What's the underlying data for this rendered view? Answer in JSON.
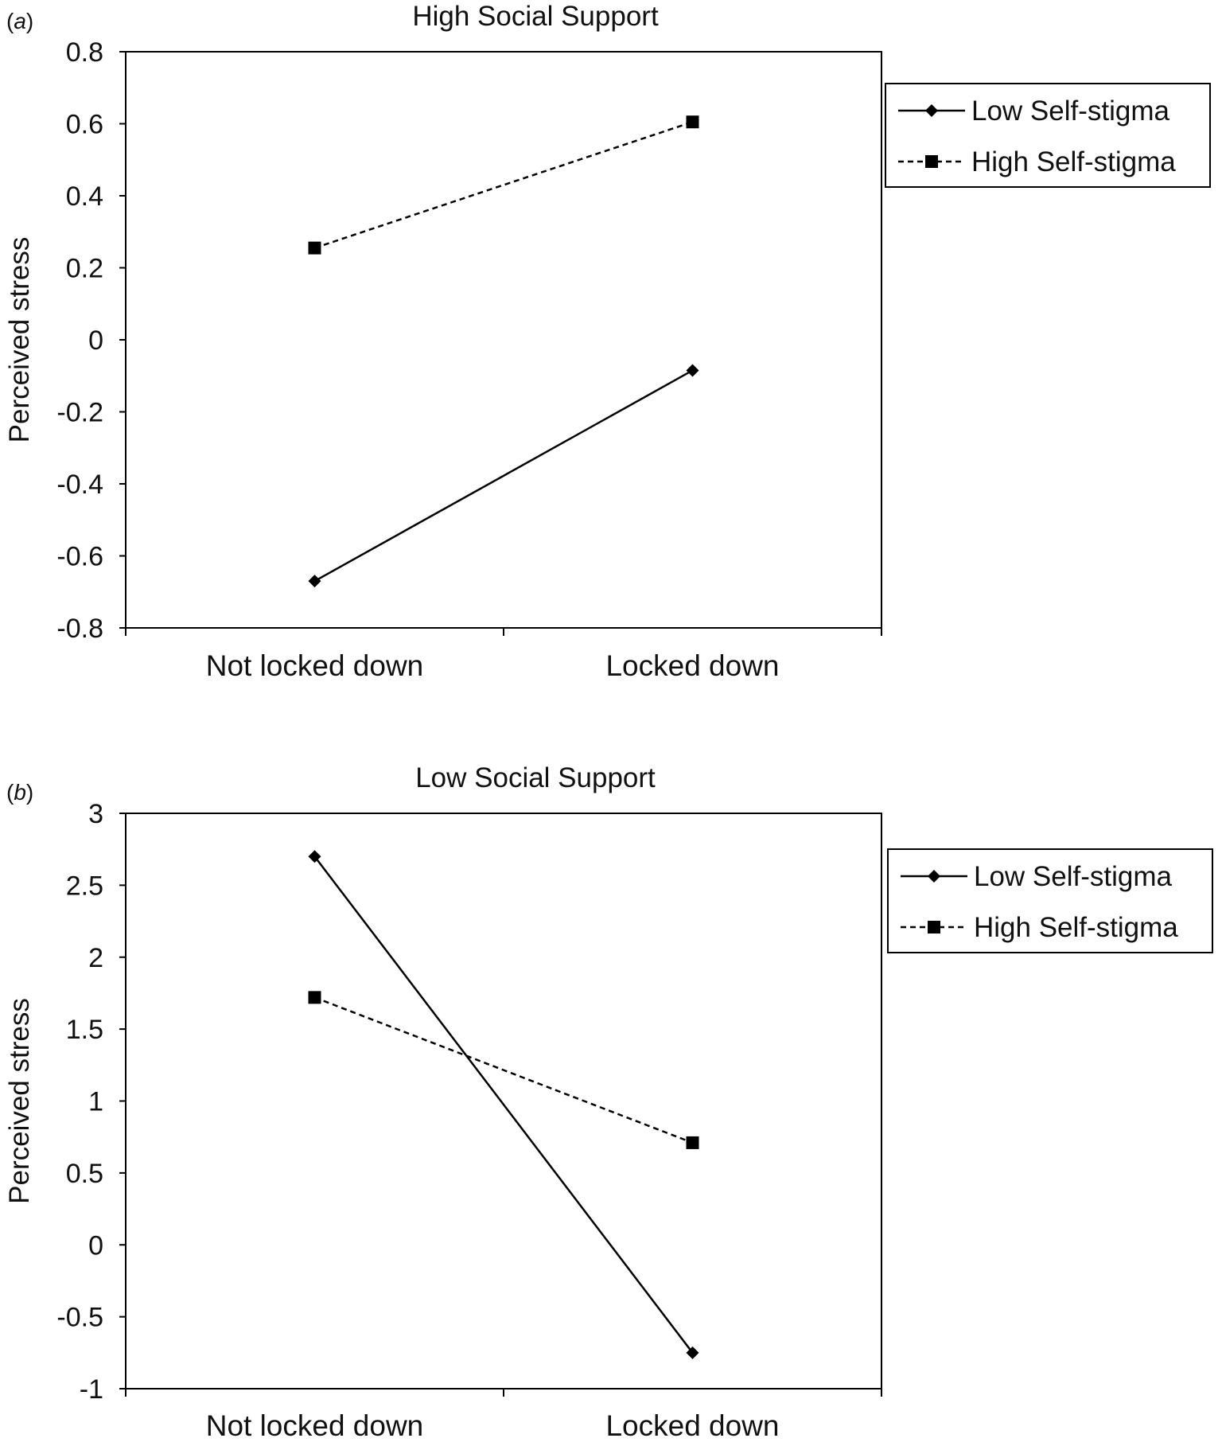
{
  "chart_data": [
    {
      "panel_label": "(a)",
      "type": "line",
      "title": "High Social Support",
      "xlabel": "",
      "ylabel": "Perceived stress",
      "categories": [
        "Not locked down",
        "Locked down"
      ],
      "ylim": [
        -0.8,
        0.8
      ],
      "yticks": [
        "-0.8",
        "-0.6",
        "-0.4",
        "-0.2",
        "0",
        "0.2",
        "0.4",
        "0.6",
        "0.8"
      ],
      "legend_position": "right",
      "series": [
        {
          "name": "Low Self-stigma",
          "values": [
            -0.67,
            -0.085
          ],
          "line": "solid",
          "marker": "diamond",
          "color": "#000000"
        },
        {
          "name": "High Self-stigma",
          "values": [
            0.255,
            0.605
          ],
          "line": "dashed",
          "marker": "square",
          "color": "#000000"
        }
      ]
    },
    {
      "panel_label": "(b)",
      "type": "line",
      "title": "Low Social Support",
      "xlabel": "",
      "ylabel": "Perceived stress",
      "categories": [
        "Not locked down",
        "Locked down"
      ],
      "ylim": [
        -1,
        3
      ],
      "yticks": [
        "-1",
        "-0.5",
        "0",
        "0.5",
        "1",
        "1.5",
        "2",
        "2.5",
        "3"
      ],
      "legend_position": "right",
      "series": [
        {
          "name": "Low Self-stigma",
          "values": [
            2.7,
            -0.75
          ],
          "line": "solid",
          "marker": "diamond",
          "color": "#000000"
        },
        {
          "name": "High Self-stigma",
          "values": [
            1.72,
            0.71
          ],
          "line": "dashed",
          "marker": "square",
          "color": "#000000"
        }
      ]
    }
  ]
}
